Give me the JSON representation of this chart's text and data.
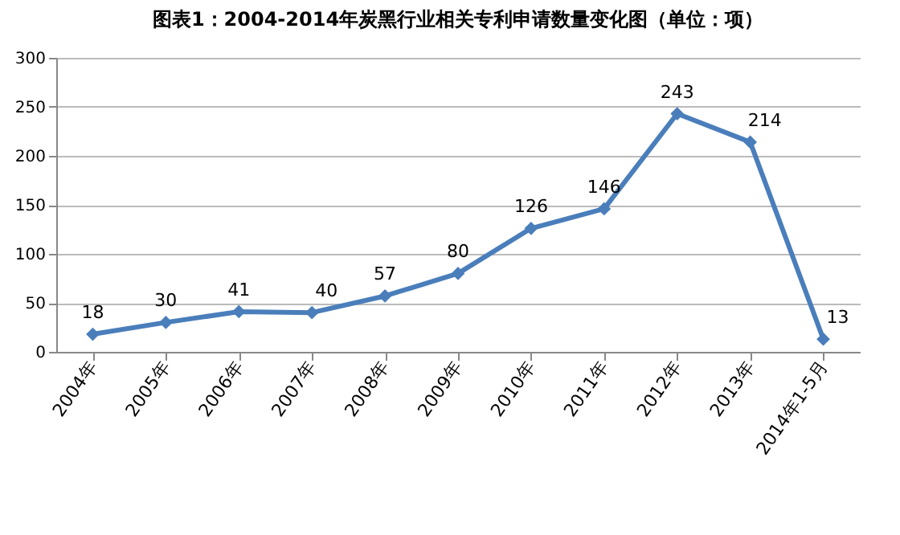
{
  "chart_data": {
    "type": "line",
    "title": "图表1：2004-2014年炭黑行业相关专利申请数量变化图（单位：项）",
    "categories": [
      "2004年",
      "2005年",
      "2006年",
      "2007年",
      "2008年",
      "2009年",
      "2010年",
      "2011年",
      "2012年",
      "2013年",
      "2014年1-5月"
    ],
    "values": [
      18,
      30,
      41,
      40,
      57,
      80,
      126,
      146,
      243,
      214,
      13
    ],
    "color": "#4a7ebb",
    "ylim": [
      0,
      300
    ],
    "yticks": [
      0,
      50,
      100,
      150,
      200,
      250,
      300
    ],
    "grid": "y",
    "marker": "diamond",
    "line_style": "solid",
    "data_labels": true
  }
}
